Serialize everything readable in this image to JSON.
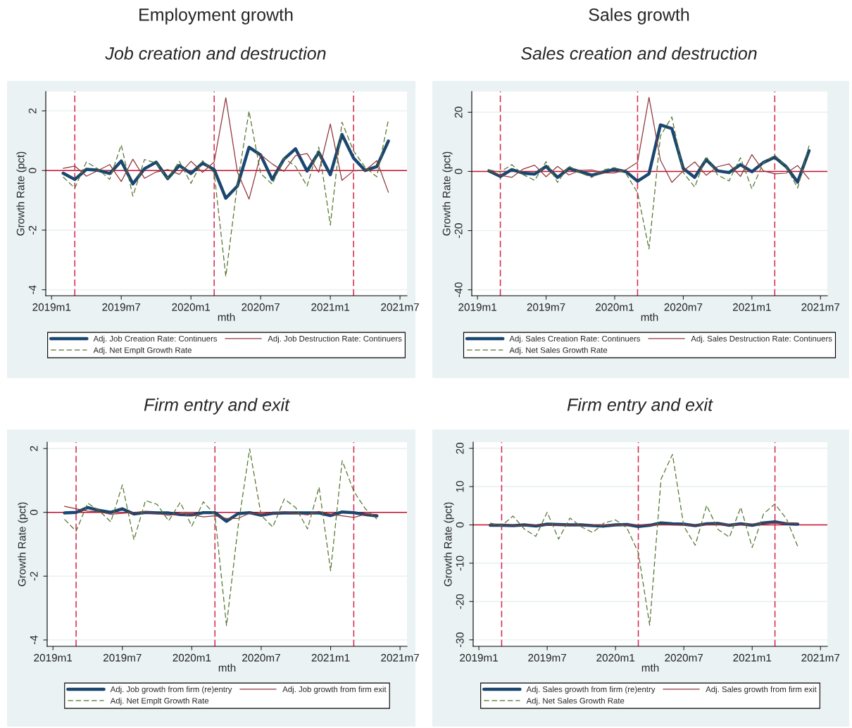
{
  "chart_data": [
    {
      "type": "line",
      "title": "Employment growth",
      "subtitle": "Job creation and destruction",
      "xlabel": "mth",
      "ylabel": "Growth Rate (pct)",
      "x": [
        "2019-02",
        "2019-03",
        "2019-04",
        "2019-05",
        "2019-06",
        "2019-07",
        "2019-08",
        "2019-09",
        "2019-10",
        "2019-11",
        "2019-12",
        "2020-01",
        "2020-02",
        "2020-03",
        "2020-04",
        "2020-05",
        "2020-06",
        "2020-07",
        "2020-08",
        "2020-09",
        "2020-10",
        "2020-11",
        "2020-12",
        "2021-01",
        "2021-02",
        "2021-03",
        "2021-04",
        "2021-05",
        "2021-06"
      ],
      "xlim": [
        "2018-12-16",
        "2021-07-19"
      ],
      "xticks": [
        {
          "value": "2019-01",
          "label": "2019m1"
        },
        {
          "value": "2019-07",
          "label": "2019m7"
        },
        {
          "value": "2020-01",
          "label": "2020m1"
        },
        {
          "value": "2020-07",
          "label": "2020m7"
        },
        {
          "value": "2021-01",
          "label": "2021m1"
        },
        {
          "value": "2021-07",
          "label": "2021m7"
        }
      ],
      "ylim": [
        -4.2,
        2.65
      ],
      "yticks": [
        -4,
        -2,
        0,
        2
      ],
      "grid": "y",
      "legend": "bottom",
      "series": [
        {
          "name": "Adj. Job Creation Rate: Continuers",
          "color": "#1a476f",
          "line_style": "solid",
          "values": [
            -0.09,
            -0.3,
            0.04,
            0.01,
            -0.1,
            0.32,
            -0.45,
            0.06,
            0.28,
            -0.27,
            0.17,
            -0.1,
            0.25,
            0.03,
            -0.93,
            -0.52,
            0.78,
            0.52,
            -0.3,
            0.38,
            0.73,
            -0.02,
            0.61,
            -0.14,
            1.21,
            0.42,
            0.0,
            0.13,
            0.99
          ]
        },
        {
          "name": "Adj. Job Destruction Rate: Continuers",
          "color": "#90353b",
          "line_style": "solid",
          "values": [
            0.07,
            0.15,
            -0.19,
            0.0,
            0.2,
            -0.37,
            0.38,
            -0.26,
            -0.05,
            0.03,
            -0.13,
            0.31,
            -0.06,
            0.29,
            2.44,
            -0.05,
            -0.96,
            0.53,
            0.22,
            -0.03,
            0.5,
            0.57,
            -0.06,
            1.56,
            -0.33,
            -0.01,
            0.0,
            0.33,
            -0.73
          ]
        },
        {
          "name": "Adj. Net Emplt Growth Rate",
          "color": "#55752f",
          "line_style": "dashed",
          "values": [
            -0.22,
            -0.59,
            0.29,
            0.05,
            -0.3,
            0.86,
            -0.86,
            0.37,
            0.25,
            -0.27,
            0.31,
            -0.43,
            0.33,
            -0.08,
            -3.55,
            -0.45,
            1.99,
            -0.1,
            -0.46,
            0.42,
            0.14,
            -0.52,
            0.79,
            -1.83,
            1.62,
            0.66,
            0.11,
            -0.21,
            1.7
          ]
        }
      ],
      "ref_lines": [
        {
          "axis": "y",
          "value": 0,
          "color": "#c8102e",
          "line_style": "solid"
        },
        {
          "axis": "x",
          "value": "2019-03",
          "color": "#d6274d",
          "line_style": "dashed"
        },
        {
          "axis": "x",
          "value": "2020-03",
          "color": "#d6274d",
          "line_style": "dashed"
        },
        {
          "axis": "x",
          "value": "2021-03",
          "color": "#d6274d",
          "line_style": "dashed"
        }
      ]
    },
    {
      "type": "line",
      "title": "Sales growth",
      "subtitle": "Sales creation and destruction",
      "xlabel": "mth",
      "ylabel": "Growth Rate (pct)",
      "x": [
        "2019-02",
        "2019-03",
        "2019-04",
        "2019-05",
        "2019-06",
        "2019-07",
        "2019-08",
        "2019-09",
        "2019-10",
        "2019-11",
        "2019-12",
        "2020-01",
        "2020-02",
        "2020-03",
        "2020-04",
        "2020-05",
        "2020-06",
        "2020-07",
        "2020-08",
        "2020-09",
        "2020-10",
        "2020-11",
        "2020-12",
        "2021-01",
        "2021-02",
        "2021-03",
        "2021-04",
        "2021-05",
        "2021-06"
      ],
      "xlim": [
        "2018-12-16",
        "2021-07-19"
      ],
      "xticks": [
        {
          "value": "2019-01",
          "label": "2019m1"
        },
        {
          "value": "2019-07",
          "label": "2019m7"
        },
        {
          "value": "2020-01",
          "label": "2020m1"
        },
        {
          "value": "2020-07",
          "label": "2020m7"
        },
        {
          "value": "2021-01",
          "label": "2021m1"
        },
        {
          "value": "2021-07",
          "label": "2021m7"
        }
      ],
      "ylim": [
        -42,
        27
      ],
      "yticks": [
        -40,
        -20,
        0,
        20
      ],
      "grid": "y",
      "legend": "bottom",
      "series": [
        {
          "name": "Adj. Sales Creation Rate: Continuers",
          "color": "#1a476f",
          "line_style": "solid",
          "values": [
            0.2,
            -1.7,
            0.6,
            -0.6,
            -0.9,
            1.7,
            -2.0,
            1.0,
            -0.1,
            -1.3,
            -0.2,
            0.7,
            -0.1,
            -3.3,
            -0.8,
            15.7,
            14.5,
            1.0,
            -2.0,
            4.0,
            0.2,
            -0.4,
            2.3,
            -0.1,
            3.0,
            4.8,
            1.6,
            -3.6,
            7.0
          ]
        },
        {
          "name": "Adj. Sales Destruction Rate: Continuers",
          "color": "#90353b",
          "line_style": "solid",
          "values": [
            0.3,
            -1.3,
            -2.0,
            0.8,
            2.1,
            -1.8,
            1.7,
            -1.2,
            0.4,
            0.5,
            -0.5,
            -0.5,
            0.6,
            3.1,
            25.0,
            3.8,
            -3.7,
            0.2,
            3.2,
            -1.3,
            1.6,
            2.5,
            -1.7,
            5.7,
            0.2,
            -0.8,
            -0.6,
            2.0,
            -2.6
          ]
        },
        {
          "name": "Adj. Net Sales Growth Rate",
          "color": "#55752f",
          "line_style": "dashed",
          "values": [
            0.5,
            -0.2,
            2.3,
            -1.1,
            -3.0,
            3.3,
            -3.7,
            1.8,
            -0.5,
            -2.0,
            0.5,
            1.3,
            -0.8,
            -7.2,
            -26.2,
            12.0,
            18.4,
            -0.4,
            -5.3,
            5.1,
            -1.2,
            -3.2,
            4.6,
            -5.9,
            2.9,
            5.5,
            1.6,
            -5.6,
            8.7
          ]
        }
      ],
      "ref_lines": [
        {
          "axis": "y",
          "value": 0,
          "color": "#c8102e",
          "line_style": "solid"
        },
        {
          "axis": "x",
          "value": "2019-03",
          "color": "#d6274d",
          "line_style": "dashed"
        },
        {
          "axis": "x",
          "value": "2020-03",
          "color": "#d6274d",
          "line_style": "dashed"
        },
        {
          "axis": "x",
          "value": "2021-03",
          "color": "#d6274d",
          "line_style": "dashed"
        }
      ]
    },
    {
      "type": "line",
      "title": "Firm entry and exit",
      "xlabel": "mth",
      "ylabel": "Growth Rate (pct)",
      "x": [
        "2019-02",
        "2019-03",
        "2019-04",
        "2019-05",
        "2019-06",
        "2019-07",
        "2019-08",
        "2019-09",
        "2019-10",
        "2019-11",
        "2019-12",
        "2020-01",
        "2020-02",
        "2020-03",
        "2020-04",
        "2020-05",
        "2020-06",
        "2020-07",
        "2020-08",
        "2020-09",
        "2020-10",
        "2020-11",
        "2020-12",
        "2021-01",
        "2021-02",
        "2021-03",
        "2021-04",
        "2021-05"
      ],
      "xlim": [
        "2018-12-16",
        "2021-07-19"
      ],
      "xticks": [
        {
          "value": "2019-01",
          "label": "2019m1"
        },
        {
          "value": "2019-07",
          "label": "2019m7"
        },
        {
          "value": "2020-01",
          "label": "2020m1"
        },
        {
          "value": "2020-07",
          "label": "2020m7"
        },
        {
          "value": "2021-01",
          "label": "2021m1"
        },
        {
          "value": "2021-07",
          "label": "2021m7"
        }
      ],
      "ylim": [
        -4.2,
        2.2
      ],
      "yticks": [
        -4,
        -2,
        0,
        2
      ],
      "grid": "y",
      "legend": "bottom",
      "series": [
        {
          "name": "Adj. Job growth from firm (re)entry",
          "color": "#1a476f",
          "line_style": "solid",
          "values": [
            -0.02,
            0.0,
            0.15,
            0.06,
            0.0,
            0.11,
            -0.05,
            0.0,
            -0.02,
            -0.02,
            -0.07,
            -0.08,
            -0.01,
            -0.01,
            -0.28,
            -0.04,
            -0.01,
            -0.09,
            -0.03,
            -0.02,
            -0.02,
            -0.02,
            -0.02,
            -0.1,
            0.01,
            -0.01,
            -0.07,
            -0.11
          ]
        },
        {
          "name": "Adj. Job growth from firm exit",
          "color": "#90353b",
          "line_style": "solid",
          "values": [
            0.19,
            0.11,
            0.04,
            0.01,
            -0.06,
            -0.03,
            0.0,
            0.02,
            -0.04,
            -0.09,
            -0.04,
            -0.07,
            -0.14,
            -0.11,
            -0.19,
            -0.19,
            -0.03,
            -0.05,
            -0.02,
            0.02,
            -0.03,
            -0.08,
            0.03,
            -0.06,
            -0.11,
            -0.16,
            -0.06,
            -0.07
          ]
        },
        {
          "name": "Adj. Net Emplt Growth Rate",
          "color": "#55752f",
          "line_style": "dashed",
          "values": [
            -0.22,
            -0.59,
            0.29,
            0.05,
            -0.3,
            0.86,
            -0.86,
            0.37,
            0.25,
            -0.27,
            0.31,
            -0.43,
            0.33,
            -0.08,
            -3.55,
            -0.45,
            1.99,
            -0.1,
            -0.46,
            0.42,
            0.14,
            -0.52,
            0.79,
            -1.83,
            1.62,
            0.66,
            0.11,
            -0.21
          ]
        }
      ],
      "ref_lines": [
        {
          "axis": "y",
          "value": 0,
          "color": "#c8102e",
          "line_style": "solid"
        },
        {
          "axis": "x",
          "value": "2019-03",
          "color": "#d6274d",
          "line_style": "dashed"
        },
        {
          "axis": "x",
          "value": "2020-03",
          "color": "#d6274d",
          "line_style": "dashed"
        },
        {
          "axis": "x",
          "value": "2021-03",
          "color": "#d6274d",
          "line_style": "dashed"
        }
      ]
    },
    {
      "type": "line",
      "title": "Firm entry and exit",
      "xlabel": "mth",
      "ylabel": "Growth Rate (pct)",
      "x": [
        "2019-02",
        "2019-03",
        "2019-04",
        "2019-05",
        "2019-06",
        "2019-07",
        "2019-08",
        "2019-09",
        "2019-10",
        "2019-11",
        "2019-12",
        "2020-01",
        "2020-02",
        "2020-03",
        "2020-04",
        "2020-05",
        "2020-06",
        "2020-07",
        "2020-08",
        "2020-09",
        "2020-10",
        "2020-11",
        "2020-12",
        "2021-01",
        "2021-02",
        "2021-03",
        "2021-04",
        "2021-05"
      ],
      "xlim": [
        "2018-12-16",
        "2021-07-19"
      ],
      "xticks": [
        {
          "value": "2019-01",
          "label": "2019m1"
        },
        {
          "value": "2019-07",
          "label": "2019m7"
        },
        {
          "value": "2020-01",
          "label": "2020m1"
        },
        {
          "value": "2020-07",
          "label": "2020m7"
        },
        {
          "value": "2021-01",
          "label": "2021m1"
        },
        {
          "value": "2021-07",
          "label": "2021m7"
        }
      ],
      "ylim": [
        -31.7,
        21.6
      ],
      "yticks": [
        -30,
        -20,
        -10,
        0,
        10,
        20
      ],
      "grid": "y",
      "legend": "bottom",
      "series": [
        {
          "name": "Adj. Sales growth from firm (re)entry",
          "color": "#1a476f",
          "line_style": "solid",
          "values": [
            -0.1,
            -0.1,
            -0.2,
            0.0,
            -0.3,
            0.2,
            0.1,
            0.0,
            0.0,
            -0.2,
            -0.3,
            0.0,
            0.1,
            -0.4,
            -0.1,
            0.5,
            0.3,
            0.2,
            -0.2,
            0.3,
            0.4,
            -0.1,
            0.3,
            -0.1,
            0.5,
            0.8,
            0.3,
            0.2
          ]
        },
        {
          "name": "Adj. Sales growth from firm exit",
          "color": "#90353b",
          "line_style": "solid",
          "values": [
            0.1,
            0.0,
            -0.1,
            -0.1,
            0.0,
            0.0,
            0.1,
            0.0,
            -0.1,
            -0.1,
            -0.1,
            0.0,
            0.0,
            0.0,
            0.0,
            0.1,
            0.0,
            0.0,
            0.0,
            0.1,
            0.2,
            0.0,
            0.1,
            0.2,
            0.3,
            0.5,
            0.4,
            0.4
          ]
        },
        {
          "name": "Adj. Net Sales Growth Rate",
          "color": "#55752f",
          "line_style": "dashed",
          "values": [
            0.5,
            -0.2,
            2.3,
            -1.1,
            -3.0,
            3.3,
            -3.7,
            1.8,
            -0.5,
            -2.0,
            0.5,
            1.3,
            -0.8,
            -7.2,
            -26.2,
            12.0,
            18.4,
            -0.4,
            -5.3,
            5.1,
            -1.2,
            -3.2,
            4.6,
            -5.9,
            2.9,
            5.5,
            1.6,
            -5.6
          ]
        }
      ],
      "ref_lines": [
        {
          "axis": "y",
          "value": 0,
          "color": "#c8102e",
          "line_style": "solid"
        },
        {
          "axis": "x",
          "value": "2019-03",
          "color": "#d6274d",
          "line_style": "dashed"
        },
        {
          "axis": "x",
          "value": "2020-03",
          "color": "#d6274d",
          "line_style": "dashed"
        },
        {
          "axis": "x",
          "value": "2021-03",
          "color": "#d6274d",
          "line_style": "dashed"
        }
      ]
    }
  ]
}
